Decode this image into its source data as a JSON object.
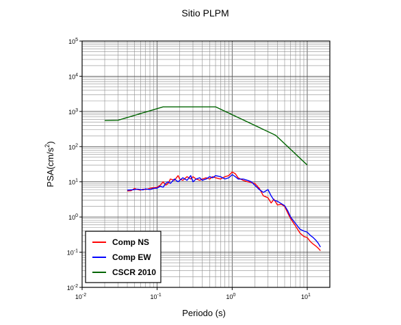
{
  "chart_data": {
    "type": "line",
    "title": "Sitio PLPM",
    "xlabel": "Periodo (s)",
    "ylabel_main": "PSA(cm/s",
    "ylabel_sup": "2",
    "ylabel_close": ")",
    "x_scale": "log",
    "y_scale": "log",
    "xlim": [
      0.01,
      20
    ],
    "ylim": [
      0.01,
      100000
    ],
    "grid": true,
    "legend_position": "bottom-left",
    "x_ticks": [
      {
        "base": "10",
        "exp": "-2"
      },
      {
        "base": "10",
        "exp": "-1"
      },
      {
        "base": "10",
        "exp": "0"
      },
      {
        "base": "10",
        "exp": "1"
      }
    ],
    "y_ticks": [
      {
        "base": "10",
        "exp": "-2"
      },
      {
        "base": "10",
        "exp": "-1"
      },
      {
        "base": "10",
        "exp": "0"
      },
      {
        "base": "10",
        "exp": "1"
      },
      {
        "base": "10",
        "exp": "2"
      },
      {
        "base": "10",
        "exp": "3"
      },
      {
        "base": "10",
        "exp": "4"
      },
      {
        "base": "10",
        "exp": "5"
      }
    ],
    "series": [
      {
        "name": "Comp NS",
        "color": "#ff0000",
        "x": [
          0.04,
          0.045,
          0.05,
          0.055,
          0.06,
          0.065,
          0.07,
          0.08,
          0.09,
          0.1,
          0.11,
          0.12,
          0.13,
          0.14,
          0.15,
          0.17,
          0.19,
          0.2,
          0.22,
          0.25,
          0.28,
          0.3,
          0.33,
          0.37,
          0.4,
          0.45,
          0.5,
          0.55,
          0.6,
          0.7,
          0.8,
          0.9,
          1.0,
          1.1,
          1.2,
          1.4,
          1.6,
          1.8,
          2.0,
          2.3,
          2.6,
          3.0,
          3.3,
          3.6,
          4.0,
          4.5,
          5.0,
          5.5,
          6.0,
          7.0,
          8.0,
          9.0,
          10.0,
          11.0,
          12.0,
          13.0,
          14.0,
          15.0
        ],
        "y": [
          5.5,
          5.6,
          6.5,
          6.0,
          5.8,
          6.2,
          6.0,
          6.5,
          6.8,
          7.0,
          8.0,
          10.0,
          8.0,
          9.0,
          12.0,
          11.0,
          15.0,
          12.0,
          11.0,
          14.0,
          12.0,
          14.0,
          12.0,
          11.0,
          12.0,
          13.0,
          12.0,
          14.0,
          13.0,
          12.0,
          14.0,
          15.0,
          19.0,
          17.0,
          13.0,
          11.0,
          10.0,
          9.5,
          9.0,
          6.5,
          4.0,
          3.5,
          2.5,
          3.2,
          2.2,
          2.3,
          2.0,
          1.3,
          0.9,
          0.55,
          0.35,
          0.28,
          0.26,
          0.2,
          0.17,
          0.15,
          0.13,
          0.11
        ]
      },
      {
        "name": "Comp EW",
        "color": "#0000ff",
        "x": [
          0.04,
          0.045,
          0.05,
          0.055,
          0.06,
          0.065,
          0.07,
          0.08,
          0.09,
          0.1,
          0.11,
          0.12,
          0.13,
          0.14,
          0.15,
          0.17,
          0.19,
          0.2,
          0.22,
          0.25,
          0.28,
          0.3,
          0.33,
          0.37,
          0.4,
          0.45,
          0.5,
          0.55,
          0.6,
          0.7,
          0.8,
          0.9,
          1.0,
          1.1,
          1.2,
          1.4,
          1.6,
          1.8,
          2.0,
          2.3,
          2.6,
          3.0,
          3.3,
          3.6,
          4.0,
          4.5,
          5.0,
          5.5,
          6.0,
          7.0,
          8.0,
          9.0,
          10.0,
          11.0,
          12.0,
          13.0,
          14.0,
          15.0
        ],
        "y": [
          5.8,
          5.9,
          6.0,
          6.2,
          6.0,
          5.9,
          6.3,
          6.0,
          6.5,
          6.6,
          7.5,
          7.0,
          9.0,
          10.0,
          9.0,
          12.0,
          10.0,
          11.0,
          13.0,
          11.0,
          15.0,
          10.0,
          12.0,
          13.0,
          11.0,
          12.0,
          14.0,
          13.0,
          15.0,
          14.0,
          12.0,
          13.0,
          16.0,
          14.0,
          12.0,
          12.0,
          11.0,
          10.0,
          8.0,
          6.0,
          5.0,
          6.0,
          4.0,
          3.0,
          2.8,
          2.4,
          2.1,
          1.5,
          1.0,
          0.65,
          0.45,
          0.4,
          0.37,
          0.3,
          0.26,
          0.22,
          0.18,
          0.14
        ]
      },
      {
        "name": "CSCR 2010",
        "color": "#006400",
        "x": [
          0.02,
          0.03,
          0.12,
          0.6,
          3.8,
          10.0
        ],
        "y": [
          550,
          560,
          1350,
          1350,
          210,
          30
        ]
      }
    ]
  }
}
